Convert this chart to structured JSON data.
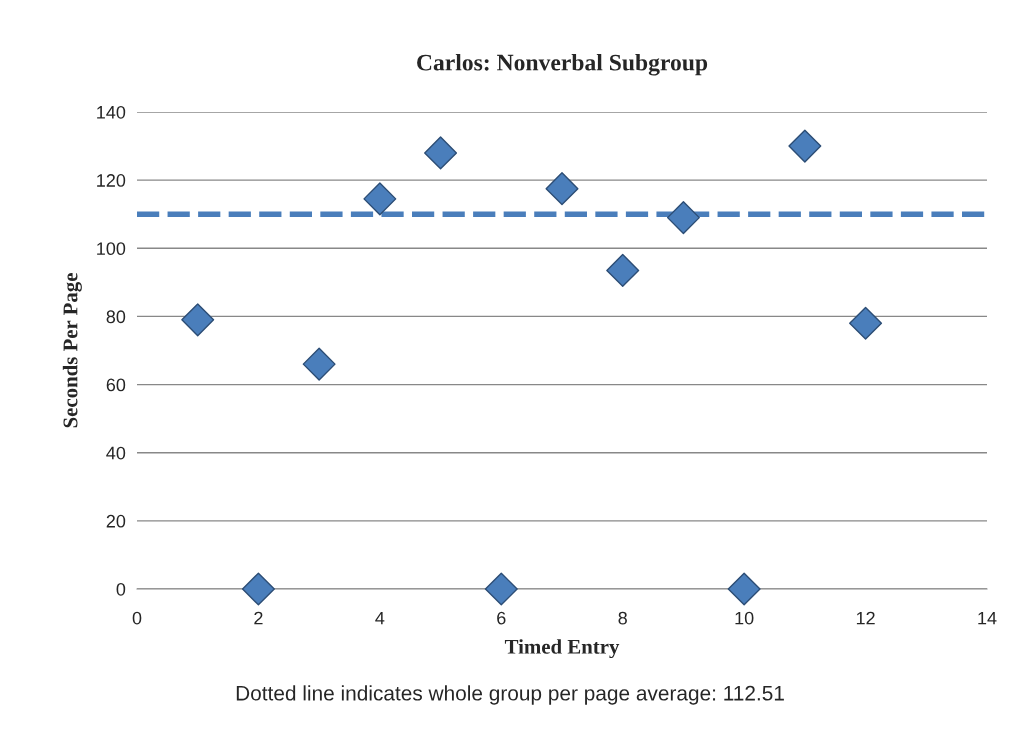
{
  "chart_data": {
    "type": "scatter",
    "title": "Carlos: Nonverbal Subgroup",
    "xlabel": "Timed Entry",
    "ylabel": "Seconds Per Page",
    "x": [
      1,
      2,
      3,
      4,
      5,
      6,
      7,
      8,
      9,
      10,
      11,
      12
    ],
    "values": [
      79,
      0,
      66,
      114.5,
      128,
      0,
      117.5,
      93.5,
      109,
      0,
      130,
      78
    ],
    "color": "#4a7ebb",
    "marker": "diamond",
    "xlim": [
      0,
      14
    ],
    "xticks": [
      0,
      2,
      4,
      6,
      8,
      10,
      12,
      14
    ],
    "ylim": [
      0,
      140
    ],
    "yticks": [
      0,
      20,
      40,
      60,
      80,
      100,
      120,
      140
    ],
    "grid": "y",
    "ref_lines": [
      {
        "axis": "y",
        "value": 110,
        "color": "#4a7ebb",
        "line_style": "dashed"
      }
    ],
    "annotations": [
      "Dotted line indicates whole group per page average: 112.51"
    ]
  }
}
